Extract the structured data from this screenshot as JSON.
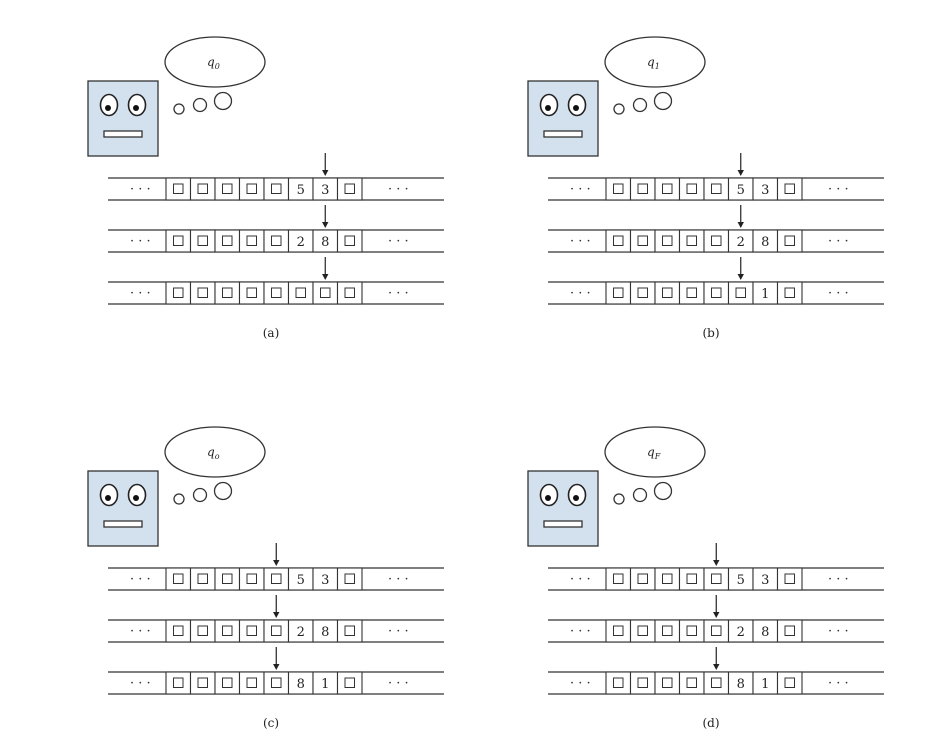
{
  "panels": [
    {
      "caption": "(a)",
      "state": {
        "symbol": "q",
        "subscript": "0"
      },
      "tapes": [
        {
          "cells": [
            "",
            "",
            "",
            "",
            "",
            "5",
            "3",
            ""
          ],
          "head": 6
        },
        {
          "cells": [
            "",
            "",
            "",
            "",
            "",
            "2",
            "8",
            ""
          ],
          "head": 6
        },
        {
          "cells": [
            "",
            "",
            "",
            "",
            "",
            "",
            "",
            ""
          ],
          "head": 6
        }
      ]
    },
    {
      "caption": "(b)",
      "state": {
        "symbol": "q",
        "subscript": "1"
      },
      "tapes": [
        {
          "cells": [
            "",
            "",
            "",
            "",
            "",
            "5",
            "3",
            ""
          ],
          "head": 5
        },
        {
          "cells": [
            "",
            "",
            "",
            "",
            "",
            "2",
            "8",
            ""
          ],
          "head": 5
        },
        {
          "cells": [
            "",
            "",
            "",
            "",
            "",
            "",
            "1",
            ""
          ],
          "head": 5
        }
      ]
    },
    {
      "caption": "(c)",
      "state": {
        "symbol": "q",
        "subscript": "o"
      },
      "tapes": [
        {
          "cells": [
            "",
            "",
            "",
            "",
            "",
            "5",
            "3",
            ""
          ],
          "head": 4
        },
        {
          "cells": [
            "",
            "",
            "",
            "",
            "",
            "2",
            "8",
            ""
          ],
          "head": 4
        },
        {
          "cells": [
            "",
            "",
            "",
            "",
            "",
            "8",
            "1",
            ""
          ],
          "head": 4
        }
      ]
    },
    {
      "caption": "(d)",
      "state": {
        "symbol": "q",
        "subscript": "F"
      },
      "tapes": [
        {
          "cells": [
            "",
            "",
            "",
            "",
            "",
            "5",
            "3",
            ""
          ],
          "head": 4
        },
        {
          "cells": [
            "",
            "",
            "",
            "",
            "",
            "2",
            "8",
            ""
          ],
          "head": 4
        },
        {
          "cells": [
            "",
            "",
            "",
            "",
            "",
            "8",
            "1",
            ""
          ],
          "head": 4
        }
      ]
    }
  ],
  "tape_ellipsis": "· · ·"
}
